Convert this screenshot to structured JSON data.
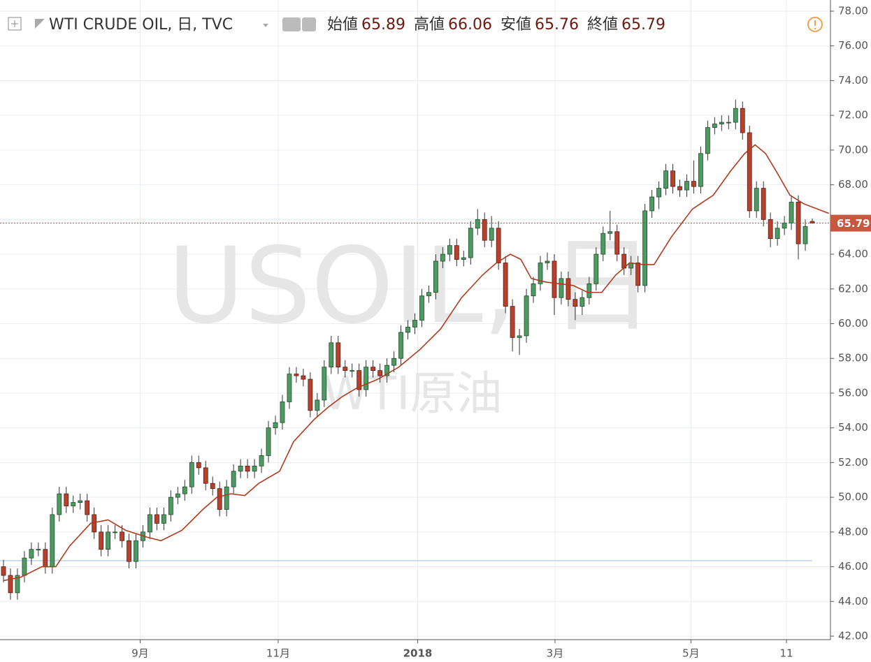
{
  "chart_data": {
    "type": "candlestick",
    "header": {
      "title": "WTI CRUDE OIL, 日, TVC",
      "open_label": "始値",
      "high_label": "高値",
      "low_label": "安値",
      "close_label": "終値"
    },
    "watermark": {
      "symbol": "USOIL, 日",
      "name": "WTI原油"
    },
    "up_color": "#4f9a62",
    "down_color": "#b8412d",
    "ma_color": "#b03a1c",
    "open": [
      46.0,
      45.5,
      44.5,
      45.5,
      46.5,
      47,
      47,
      46,
      49,
      50.2,
      49.5,
      49.7,
      49.8,
      49,
      48,
      47,
      48,
      48,
      47.5,
      46.3,
      47.5,
      48,
      49,
      48.5,
      49,
      50,
      50.2,
      50.6,
      52,
      51.7,
      50.8,
      50.5,
      49.3,
      50.6,
      51.5,
      51.8,
      51.5,
      51.8,
      52.4,
      54,
      54.3,
      55.5,
      57.1,
      57,
      56.8,
      55,
      55.6,
      57.5,
      58.9,
      57.5,
      57.3,
      57.3,
      56.2,
      57.5,
      57.3,
      57,
      57.6,
      58,
      59.5,
      59.8,
      60.2,
      61.6,
      61.8,
      63.6,
      64,
      64.5,
      63.7,
      63.8,
      65.5,
      66,
      64.8,
      65.5,
      63.5,
      61,
      59.2,
      59.3,
      61.6,
      62.3,
      63.5,
      63.6,
      61.5,
      62.6,
      61.4,
      61,
      61.5,
      62.3,
      64,
      65.2,
      65.3,
      64,
      63.2,
      63.5,
      62.2,
      66.5,
      67.3,
      67.8,
      68.8,
      67.9,
      67.7,
      68.2,
      67.9,
      69.8,
      71.3,
      71.5,
      71.6,
      71.6,
      72.4,
      71,
      66.5,
      67.8,
      66,
      64.9,
      65.5,
      65.8,
      67,
      64.6,
      65.89
    ],
    "high": [
      46.4,
      45.9,
      45.9,
      46.9,
      47.4,
      47.4,
      47.4,
      49.4,
      50.6,
      50.6,
      50.1,
      50.2,
      50.2,
      49.4,
      48.4,
      48.4,
      48.4,
      48.4,
      47.9,
      47.9,
      48.4,
      49.4,
      49.4,
      49.4,
      50.4,
      50.6,
      51,
      52.4,
      52.4,
      52.1,
      51.2,
      50.9,
      51,
      51.9,
      52.2,
      52.2,
      52.2,
      52.8,
      54.4,
      54.7,
      55.9,
      57.5,
      57.5,
      57.4,
      57.2,
      56,
      57.9,
      59.3,
      59.3,
      57.9,
      57.7,
      57.7,
      57.9,
      57.9,
      57.7,
      58,
      58.4,
      59.9,
      60.2,
      60.6,
      62,
      62.2,
      64,
      64.4,
      64.9,
      64.9,
      64.2,
      65.9,
      66.6,
      66.4,
      66.2,
      65.9,
      63.9,
      61.4,
      59.7,
      62,
      62.7,
      63.9,
      64.1,
      64,
      63,
      63,
      61.8,
      61.9,
      62.7,
      64.4,
      65.6,
      66.5,
      65.7,
      64.4,
      63.9,
      63.9,
      66.9,
      67.7,
      68.2,
      69.2,
      69.2,
      68.3,
      68.6,
      69.4,
      70.2,
      71.7,
      71.9,
      72,
      72,
      72.9,
      72.8,
      71.4,
      68.2,
      68.2,
      66.4,
      65.9,
      66.2,
      67.4,
      67.4,
      66,
      66.06
    ],
    "low": [
      45.1,
      44.1,
      44.1,
      45.1,
      46.1,
      46.6,
      45.6,
      45.6,
      48.6,
      49.1,
      49.1,
      49.3,
      48.6,
      47.6,
      46.6,
      46.6,
      47.6,
      47.1,
      45.9,
      45.9,
      47.1,
      47.6,
      48.1,
      48.1,
      48.6,
      49.6,
      49.8,
      50.2,
      51.3,
      50.4,
      50.1,
      48.9,
      48.9,
      50.2,
      51.1,
      51.1,
      51.1,
      51.4,
      52,
      53.6,
      53.9,
      55.1,
      56.6,
      56.4,
      54.6,
      54.6,
      55.2,
      57.1,
      57.1,
      56.9,
      56.9,
      55.8,
      55.8,
      56.9,
      56.6,
      56.6,
      57.2,
      57.6,
      59.1,
      59.4,
      59.8,
      61.2,
      61.4,
      63.2,
      63.6,
      63.3,
      63.3,
      63.4,
      65.1,
      64.4,
      64.4,
      63.1,
      60.6,
      58.4,
      58.2,
      58.9,
      61.2,
      61.9,
      63.1,
      60.5,
      61.1,
      61,
      60.2,
      60.5,
      61.1,
      61.9,
      63.6,
      64.8,
      63.6,
      62.8,
      62.8,
      61.8,
      61.8,
      66.1,
      66.6,
      67.4,
      67.5,
      67.3,
      67.3,
      67.5,
      67.5,
      69.4,
      70.9,
      71.1,
      71.2,
      71.2,
      70.6,
      66.1,
      66.1,
      65.6,
      64.4,
      64.5,
      65.1,
      65.4,
      63.7,
      64.2,
      65.76
    ],
    "close": [
      45.5,
      44.5,
      45.5,
      46.5,
      47,
      47,
      46,
      49,
      50.2,
      49.5,
      49.7,
      49.8,
      49,
      48,
      47,
      48,
      48,
      47.5,
      46.3,
      47.5,
      48,
      49,
      48.5,
      49,
      50,
      50.2,
      50.6,
      52,
      51.7,
      50.8,
      50.5,
      49.3,
      50.6,
      51.5,
      51.8,
      51.5,
      51.8,
      52.4,
      54,
      54.3,
      55.5,
      57.1,
      57,
      56.8,
      55,
      55.6,
      57.5,
      58.9,
      57.5,
      57.3,
      57.3,
      56.2,
      57.5,
      57.3,
      57,
      57.6,
      58,
      59.5,
      59.8,
      60.2,
      61.6,
      61.8,
      63.6,
      64,
      64.5,
      63.7,
      63.8,
      65.5,
      66,
      64.8,
      65.5,
      63.5,
      61,
      59.2,
      59.3,
      61.6,
      62.3,
      63.5,
      63.6,
      61.5,
      62.6,
      61.4,
      61,
      61.5,
      62.3,
      64,
      65.2,
      65.3,
      64,
      63.2,
      63.5,
      62.2,
      66.5,
      67.3,
      67.8,
      68.8,
      67.9,
      67.7,
      68.2,
      67.9,
      69.8,
      71.3,
      71.5,
      71.6,
      71.6,
      72.4,
      71,
      66.5,
      67.8,
      66,
      64.9,
      65.5,
      65.8,
      67,
      64.6,
      65.6,
      65.79
    ],
    "ma": {
      "x": [
        0,
        2.5,
        5.5,
        7.5,
        9.5,
        12.5,
        15,
        17.5,
        20.6,
        22.6,
        25.6,
        28.6,
        30.6,
        32.6,
        34.6,
        36.6,
        39.6,
        41.6,
        44.6,
        46.6,
        48.6,
        50.7,
        53.7,
        56.7,
        59.7,
        62.7,
        65.7,
        68.7,
        70.7,
        72.7,
        74.2,
        75.7,
        77.7,
        79.7,
        81.7,
        83.8,
        85.8,
        87.8,
        89.8,
        91.8,
        93.3,
        95.8,
        98.8,
        101.8,
        104.3,
        106.3,
        107.8,
        109.3,
        110.8,
        112.8,
        114.8,
        117.4,
        118.4
      ],
      "values": [
        45.2,
        45.4,
        46,
        46,
        47.2,
        48.5,
        48.7,
        48.1,
        47.7,
        47.5,
        48.1,
        49.3,
        50,
        50.2,
        50.1,
        50.8,
        51.5,
        53.2,
        54.5,
        55.2,
        55.8,
        56.3,
        56.8,
        57.5,
        58.5,
        59.7,
        61.5,
        62.8,
        63.5,
        64,
        63.7,
        62.6,
        62.4,
        62.3,
        62.2,
        61.8,
        61.8,
        62.8,
        63.5,
        63.4,
        63.4,
        65,
        66.6,
        67.4,
        68.8,
        69.8,
        70.3,
        69.8,
        68.8,
        67.4,
        66.9,
        66.5,
        66.35
      ]
    },
    "reference_line": 46.35,
    "xlim": [
      -0.5,
      118.4
    ],
    "xticks": [
      {
        "value": 19.6,
        "label": "9月"
      },
      {
        "value": 39.4,
        "label": "11月"
      },
      {
        "value": 59.4,
        "label": "2018"
      },
      {
        "value": 79.1,
        "label": "3月"
      },
      {
        "value": 98.6,
        "label": "5月"
      },
      {
        "value": 112.3,
        "label": "11"
      }
    ],
    "ylim": [
      42,
      78
    ],
    "yticks": [
      {
        "value": 42,
        "label": "42.00"
      },
      {
        "value": 44,
        "label": "44.00"
      },
      {
        "value": 46,
        "label": "46.00"
      },
      {
        "value": 48,
        "label": "48.00"
      },
      {
        "value": 50,
        "label": "50.00"
      },
      {
        "value": 52,
        "label": "52.00"
      },
      {
        "value": 54,
        "label": "54.00"
      },
      {
        "value": 56,
        "label": "56.00"
      },
      {
        "value": 58,
        "label": "58.00"
      },
      {
        "value": 60,
        "label": "60.00"
      },
      {
        "value": 62,
        "label": "62.00"
      },
      {
        "value": 64,
        "label": "64.00"
      },
      {
        "value": 66,
        "label": "66.00"
      },
      {
        "value": 68,
        "label": "68.00"
      },
      {
        "value": 70,
        "label": "70.00"
      },
      {
        "value": 72,
        "label": "72.00"
      },
      {
        "value": 74,
        "label": "74.00"
      },
      {
        "value": 76,
        "label": "76.00"
      },
      {
        "value": 78,
        "label": "78.00"
      }
    ],
    "grid": true
  }
}
